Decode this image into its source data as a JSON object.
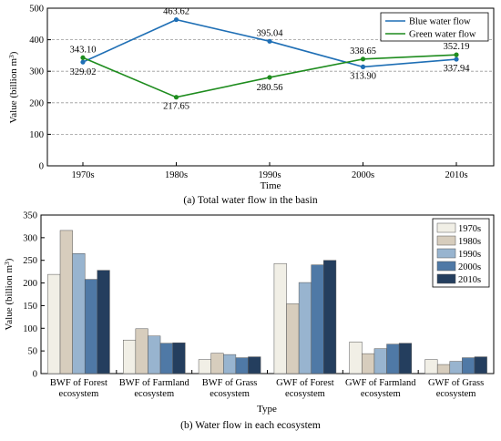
{
  "chart_data": [
    {
      "type": "line",
      "caption": "(a) Total water flow in the basin",
      "xlabel": "Time",
      "ylabel": "Value (billion m³)",
      "categories": [
        "1970s",
        "1980s",
        "1990s",
        "2000s",
        "2010s"
      ],
      "ylim": [
        0,
        500
      ],
      "yticks": [
        0,
        100,
        200,
        300,
        400,
        500
      ],
      "grid": "horizontal dashed",
      "legend_position": "top-right",
      "series": [
        {
          "name": "Blue water flow",
          "color": "#1f6fb5",
          "values": [
            329.02,
            463.62,
            395.04,
            313.9,
            337.94
          ],
          "labels": [
            "329.02",
            "463.62",
            "395.04",
            "313.90",
            "337.94"
          ]
        },
        {
          "name": "Green water flow",
          "color": "#1e8c1e",
          "values": [
            343.1,
            217.65,
            280.56,
            338.65,
            352.19
          ],
          "labels": [
            "343.10",
            "217.65",
            "280.56",
            "338.65",
            "352.19"
          ]
        }
      ]
    },
    {
      "type": "bar",
      "caption": "(b) Water flow in each ecosystem",
      "xlabel": "Type",
      "ylabel": "Value (billion m³)",
      "ylim": [
        0,
        350
      ],
      "yticks": [
        0,
        50,
        100,
        150,
        200,
        250,
        300,
        350
      ],
      "legend_position": "top-right",
      "categories": [
        [
          "BWF of Forest",
          "ecosystem"
        ],
        [
          "BWF of Farmland",
          "ecosystem"
        ],
        [
          "BWF of Grass",
          "ecosystem"
        ],
        [
          "GWF of Forest",
          "ecosystem"
        ],
        [
          "GWF of Farmland",
          "ecosystem"
        ],
        [
          "GWF of Grass",
          "ecosystem"
        ]
      ],
      "series": [
        {
          "name": "1970s",
          "color": "#f1efe6",
          "values": [
            219,
            74,
            31,
            243,
            70,
            31
          ]
        },
        {
          "name": "1980s",
          "color": "#d7cdbd",
          "values": [
            316,
            99,
            45,
            154,
            44,
            20
          ]
        },
        {
          "name": "1990s",
          "color": "#98b4cf",
          "values": [
            265,
            83,
            42,
            201,
            55,
            27
          ]
        },
        {
          "name": "2000s",
          "color": "#4f79a6",
          "values": [
            208,
            67,
            35,
            240,
            65,
            35
          ]
        },
        {
          "name": "2010s",
          "color": "#243e5e",
          "values": [
            228,
            68,
            37,
            250,
            67,
            37
          ]
        }
      ]
    }
  ]
}
